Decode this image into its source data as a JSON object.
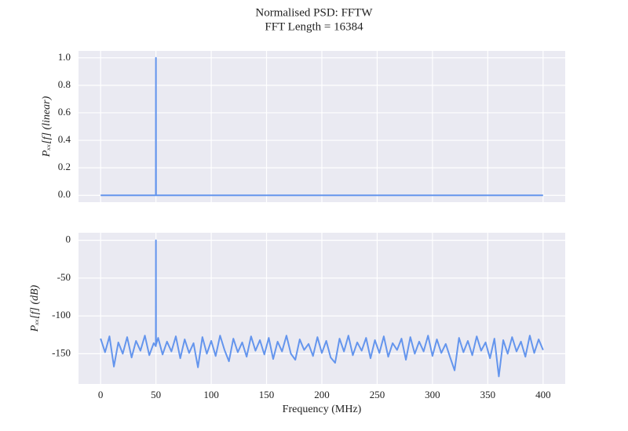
{
  "chart_data": [
    {
      "type": "line",
      "title": "Normalised PSD: FFTW",
      "subtitle": "FFT Length = 16384",
      "ylabel": "Pₓₓ[f] (linear)",
      "color": "#6495ed",
      "grid": true,
      "x": [
        0,
        49.9,
        50,
        50.1,
        400
      ],
      "values": [
        0,
        0,
        1,
        0,
        0
      ],
      "xlim": [
        -20,
        420
      ],
      "xticks": [
        0,
        50,
        100,
        150,
        200,
        250,
        300,
        350,
        400
      ],
      "ylim": [
        -0.05,
        1.05
      ],
      "yticks": [
        {
          "value": 0,
          "label": "0.0"
        },
        0.2,
        0.4,
        0.6,
        0.8,
        {
          "value": 1,
          "label": "1.0"
        }
      ]
    },
    {
      "type": "line",
      "xlabel": "Frequency (MHz)",
      "ylabel": "Pₓₓ[f] (dB)",
      "color": "#6495ed",
      "grid": true,
      "x": [
        0,
        4,
        8,
        12,
        16,
        20,
        24,
        28,
        32,
        36,
        40,
        44,
        48,
        49.9,
        50,
        50.1,
        52,
        56,
        60,
        64,
        68,
        72,
        76,
        80,
        84,
        88,
        92,
        96,
        100,
        104,
        108,
        112,
        116,
        120,
        124,
        128,
        132,
        136,
        140,
        144,
        148,
        152,
        156,
        160,
        164,
        168,
        172,
        176,
        180,
        184,
        188,
        192,
        196,
        200,
        204,
        208,
        212,
        216,
        220,
        224,
        228,
        232,
        236,
        240,
        244,
        248,
        252,
        256,
        260,
        264,
        268,
        272,
        276,
        280,
        284,
        288,
        292,
        296,
        300,
        304,
        308,
        312,
        316,
        320,
        324,
        328,
        332,
        336,
        340,
        344,
        348,
        352,
        356,
        360,
        364,
        368,
        372,
        376,
        380,
        384,
        388,
        392,
        396,
        400
      ],
      "values": [
        -130,
        -148,
        -127,
        -167,
        -135,
        -150,
        -128,
        -155,
        -133,
        -146,
        -126,
        -152,
        -136,
        -140,
        0,
        -138,
        -129,
        -151,
        -134,
        -147,
        -127,
        -156,
        -131,
        -149,
        -136,
        -168,
        -128,
        -150,
        -133,
        -153,
        -126,
        -145,
        -160,
        -130,
        -148,
        -135,
        -154,
        -127,
        -146,
        -132,
        -151,
        -129,
        -157,
        -134,
        -147,
        -126,
        -150,
        -158,
        -131,
        -145,
        -137,
        -153,
        -128,
        -149,
        -133,
        -155,
        -162,
        -130,
        -147,
        -126,
        -152,
        -135,
        -146,
        -129,
        -156,
        -132,
        -149,
        -127,
        -154,
        -136,
        -145,
        -130,
        -158,
        -128,
        -150,
        -134,
        -147,
        -126,
        -153,
        -131,
        -149,
        -137,
        -155,
        -172,
        -129,
        -148,
        -133,
        -152,
        -127,
        -146,
        -135,
        -156,
        -130,
        -180,
        -132,
        -150,
        -128,
        -147,
        -134,
        -154,
        -126,
        -149,
        -131,
        -145
      ],
      "xlim": [
        -20,
        420
      ],
      "xticks": [
        0,
        50,
        100,
        150,
        200,
        250,
        300,
        350,
        400
      ],
      "ylim": [
        -190,
        10
      ],
      "yticks": [
        -150,
        -100,
        -50,
        0
      ]
    }
  ]
}
